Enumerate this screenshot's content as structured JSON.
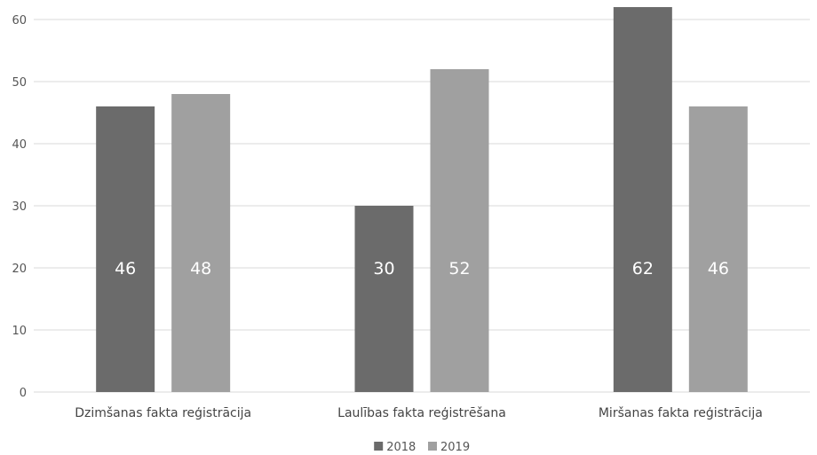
{
  "chart_data": {
    "type": "bar",
    "categories": [
      "Dzimšanas fakta reģistrācija",
      "Laulības fakta reģistrēšana",
      "Miršanas fakta reģistrācija"
    ],
    "series": [
      {
        "name": "2018",
        "values": [
          46,
          30,
          62
        ],
        "color": "#6b6b6b"
      },
      {
        "name": "2019",
        "values": [
          48,
          52,
          46
        ],
        "color": "#a0a0a0"
      }
    ],
    "ylim": [
      0,
      60
    ],
    "yticks": [
      0,
      10,
      20,
      30,
      40,
      50,
      60
    ],
    "grid": true,
    "data_labels": true,
    "legend": "bottom-center",
    "gridline_color": "#d9d9d9"
  }
}
